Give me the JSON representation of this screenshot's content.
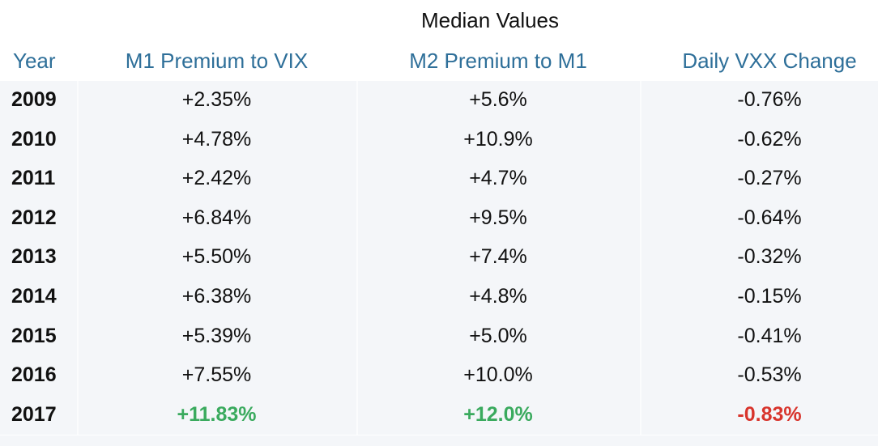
{
  "table": {
    "supertitle": "Median Values",
    "columns": [
      "Year",
      "M1 Premium to VIX",
      "M2 Premium to M1",
      "Daily VXX Change"
    ]
  },
  "colors": {
    "header_text": "#2e6f99",
    "row_background": "#f4f6f9",
    "highlight_positive": "#3aaa5e",
    "highlight_negative": "#d8342c"
  },
  "chart_data": {
    "type": "table",
    "title": "Median Values",
    "columns": [
      "Year",
      "M1 Premium to VIX",
      "M2 Premium to M1",
      "Daily VXX Change"
    ],
    "rows": [
      [
        "2009",
        "+2.35%",
        "+5.6%",
        "-0.76%"
      ],
      [
        "2010",
        "+4.78%",
        "+10.9%",
        "-0.62%"
      ],
      [
        "2011",
        "+2.42%",
        "+4.7%",
        "-0.27%"
      ],
      [
        "2012",
        "+6.84%",
        "+9.5%",
        "-0.64%"
      ],
      [
        "2013",
        "+5.50%",
        "+7.4%",
        "-0.32%"
      ],
      [
        "2014",
        "+6.38%",
        "+4.8%",
        "-0.15%"
      ],
      [
        "2015",
        "+5.39%",
        "+5.0%",
        "-0.41%"
      ],
      [
        "2016",
        "+7.55%",
        "+10.0%",
        "-0.53%"
      ],
      [
        "2017",
        "+11.83%",
        "+12.0%",
        "-0.83%"
      ]
    ],
    "highlights": [
      {
        "row": 8,
        "col": 1,
        "style": "positive"
      },
      {
        "row": 8,
        "col": 2,
        "style": "positive"
      },
      {
        "row": 8,
        "col": 3,
        "style": "negative"
      }
    ]
  }
}
